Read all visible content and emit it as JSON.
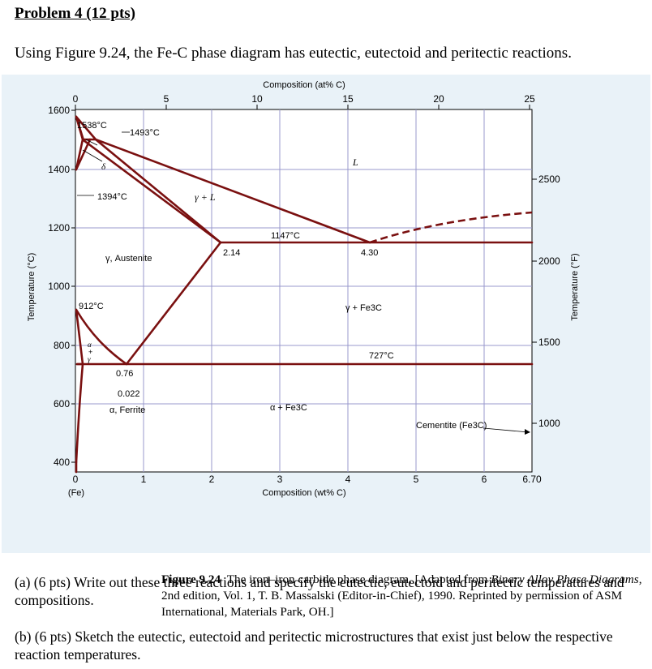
{
  "problem": {
    "title": "Problem 4 (12 pts)",
    "intro": "Using Figure 9.24, the Fe-C phase diagram has eutectic, eutectoid and peritectic reactions."
  },
  "figure": {
    "top_axis_title": "Composition (at% C)",
    "top_ticks": [
      "0",
      "5",
      "10",
      "15",
      "20",
      "25"
    ],
    "bottom_axis_title": "Composition (wt% C)",
    "bottom_ticks": [
      "0",
      "1",
      "2",
      "3",
      "4",
      "5",
      "6",
      "6.70"
    ],
    "bottom_sublabel": "(Fe)",
    "left_axis_title": "Temperature (°C)",
    "left_ticks": [
      "1600",
      "1400",
      "1200",
      "1000",
      "800",
      "600",
      "400"
    ],
    "right_axis_title": "Temperature (°F)",
    "right_ticks": [
      "2500",
      "2000",
      "1500",
      "1000"
    ],
    "labels": {
      "t1538": "1538°C",
      "t1493": "1493°C",
      "delta": "δ",
      "t1394": "1394°C",
      "gamma_L": "γ + L",
      "L": "L",
      "t1147": "1147°C",
      "c214": "2.14",
      "c430": "4.30",
      "austenite": "γ, Austenite",
      "t912": "912°C",
      "gamma_fe3c": "γ + Fe3C",
      "t727": "727°C",
      "alpha": "α",
      "plus": "+",
      "gamma": "γ",
      "c076": "0.76",
      "c0022": "0.022",
      "ferrite": "α, Ferrite",
      "alpha_fe3c": "α + Fe3C",
      "cementite": "Cementite (Fe3C)"
    },
    "colors": {
      "phase_line": "#7a1010",
      "grid": "#9999cc",
      "panel": "#e9f2f8"
    }
  },
  "caption": {
    "number": "Figure 9.24",
    "text_a": "The iron–iron carbide phase diagram. [Adapted from ",
    "book": "Binary Alloy Phase Diagrams",
    "text_b": ", 2nd edition, Vol. 1, T. B. Massalski (Editor-in-Chief), 1990. Reprinted by permission of ASM International, Materials Park, OH.]"
  },
  "questions": {
    "a": "(a) (6 pts) Write out these three reactions and specify the eutectic, eutectoid and peritectic temperatures and compositions.",
    "b": "(b) (6 pts) Sketch the eutectic, eutectoid and peritectic microstructures that exist just below the respective reaction temperatures."
  }
}
